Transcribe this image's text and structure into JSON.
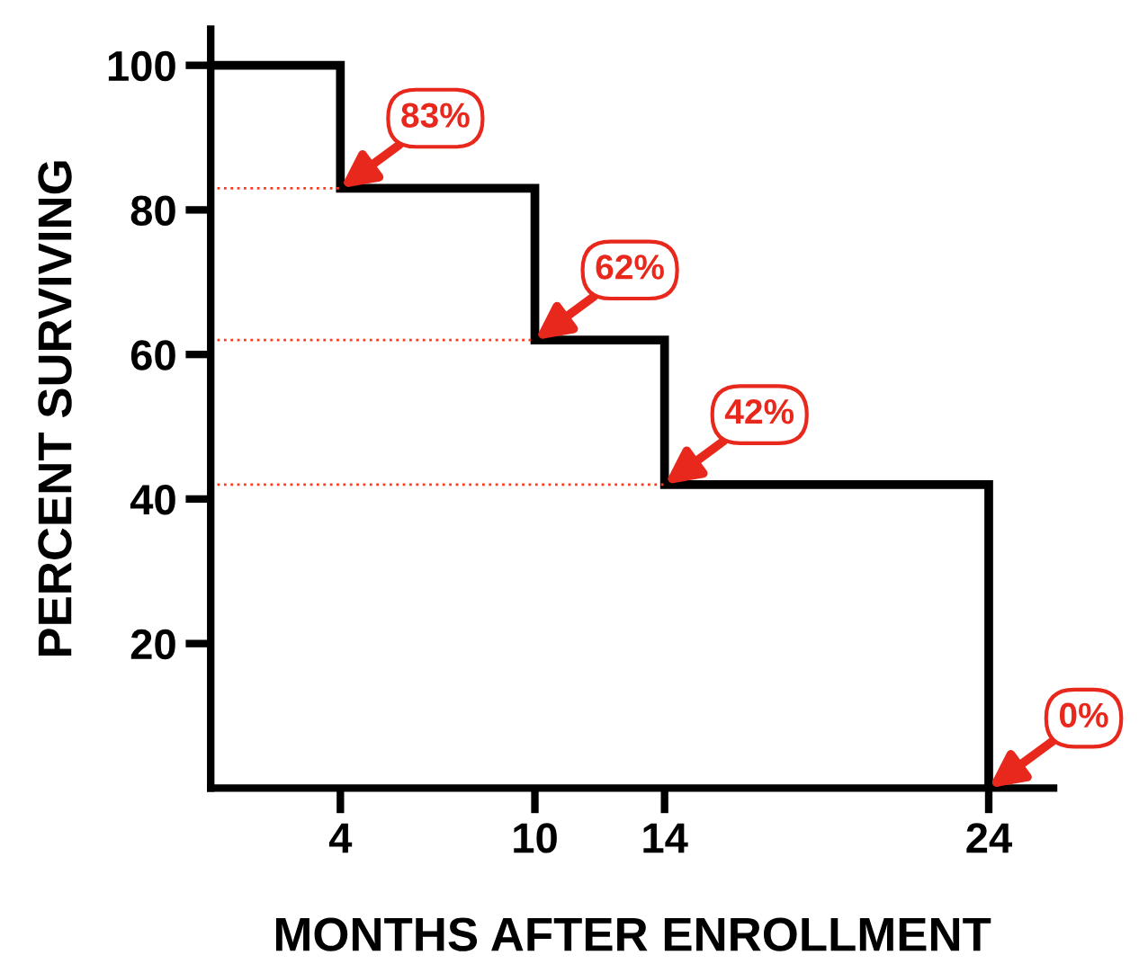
{
  "chart_data": {
    "type": "step",
    "xlabel": "MONTHS AFTER ENROLLMENT",
    "ylabel": "PERCENT SURVIVING",
    "x": [
      0,
      4,
      10,
      14,
      24
    ],
    "series": [
      {
        "color": "#000000",
        "values": [
          100,
          83,
          62,
          42,
          0
        ]
      }
    ],
    "xlim": [
      0,
      26
    ],
    "ylim": [
      0,
      105
    ],
    "xticks": [
      4,
      10,
      14,
      24
    ],
    "yticks": [
      20,
      40,
      60,
      80,
      100
    ],
    "grid": false,
    "legend": false,
    "marker": "none",
    "line_style": "solid",
    "ref_lines": [
      {
        "axis": "y",
        "value": 83,
        "color": "#ff3b1f",
        "line_style": "dotted"
      },
      {
        "axis": "y",
        "value": 62,
        "color": "#ff3b1f",
        "line_style": "dotted"
      },
      {
        "axis": "y",
        "value": 42,
        "color": "#ff3b1f",
        "line_style": "dotted"
      }
    ],
    "annotations": [
      {
        "text": "83%",
        "x": 4,
        "y": 83
      },
      {
        "text": "62%",
        "x": 10,
        "y": 62
      },
      {
        "text": "42%",
        "x": 14,
        "y": 42
      },
      {
        "text": "0%",
        "x": 24,
        "y": 0
      }
    ]
  }
}
